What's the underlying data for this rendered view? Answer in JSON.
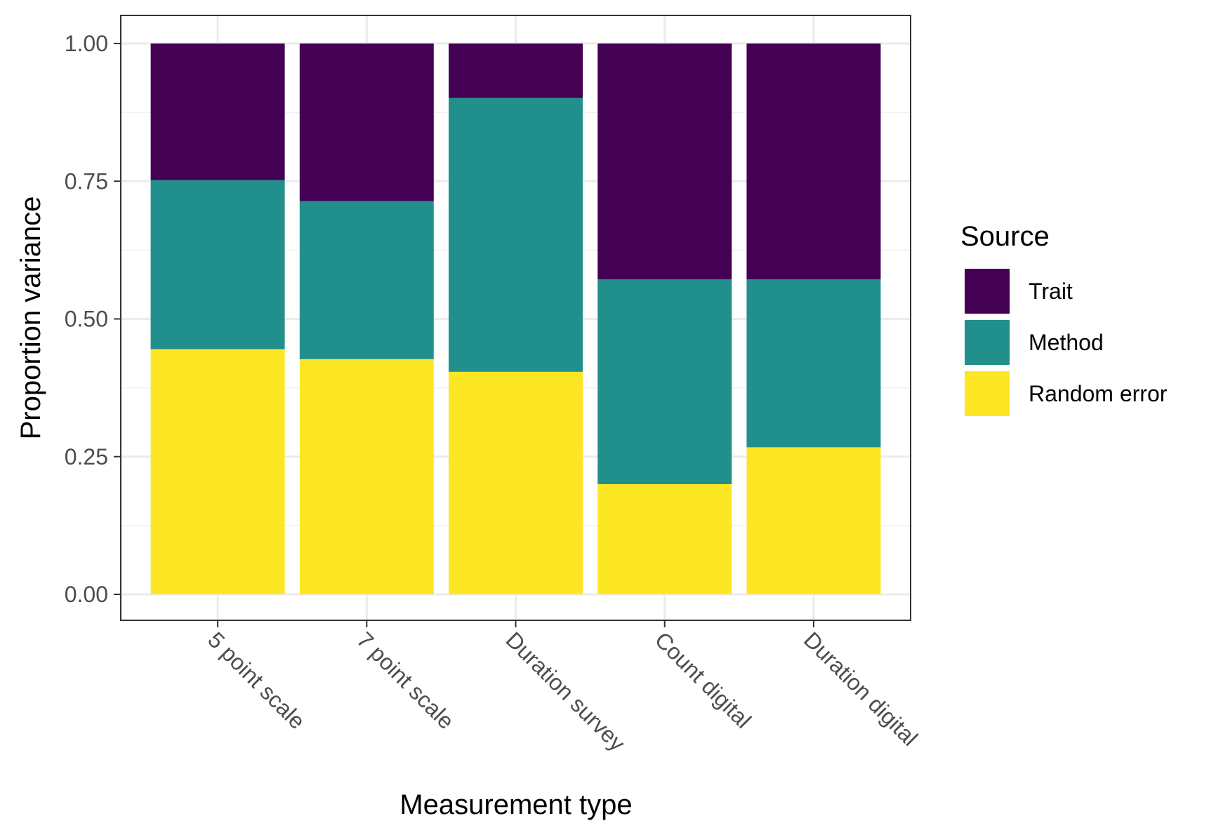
{
  "chart_data": {
    "type": "bar",
    "stacked": true,
    "categories": [
      "5 point scale",
      "7 point scale",
      "Duration survey",
      "Count digital",
      "Duration digital"
    ],
    "series": [
      {
        "name": "Random error",
        "color": "#FDE725",
        "values": [
          0.445,
          0.427,
          0.404,
          0.2,
          0.267
        ]
      },
      {
        "name": "Method",
        "color": "#21908C",
        "values": [
          0.307,
          0.287,
          0.497,
          0.372,
          0.305
        ]
      },
      {
        "name": "Trait",
        "color": "#440154",
        "values": [
          0.248,
          0.286,
          0.099,
          0.428,
          0.428
        ]
      }
    ],
    "xlabel": "Measurement type",
    "ylabel": "Proportion variance",
    "ylim": [
      0,
      1
    ],
    "yticks": [
      "0.00",
      "0.25",
      "0.50",
      "0.75",
      "1.00"
    ],
    "legend_title": "Source",
    "legend_order": [
      "Trait",
      "Method",
      "Random error"
    ],
    "legend_position": "right",
    "grid": true
  }
}
